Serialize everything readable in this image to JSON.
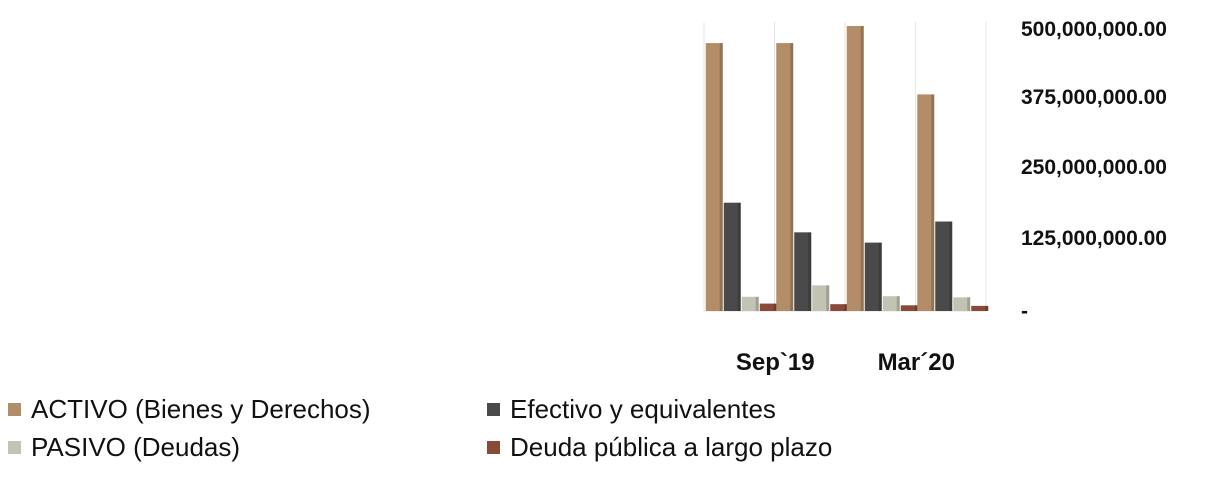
{
  "chart_data": {
    "type": "bar",
    "categories": [
      "Sep`19",
      "",
      "Mar´20",
      ""
    ],
    "series": [
      {
        "name": "ACTIVO (Bienes y Derechos)",
        "color": "#b28d67",
        "values": [
          470000000,
          470000000,
          500000000,
          380000000
        ]
      },
      {
        "name": "Efectivo y equivalentes",
        "color": "#4a4a4a",
        "values": [
          190000000,
          138000000,
          120000000,
          157000000
        ]
      },
      {
        "name": "PASIVO (Deudas)",
        "color": "#c3c3b3",
        "values": [
          25000000,
          45000000,
          26000000,
          24000000
        ]
      },
      {
        "name": "Deuda pública a largo plazo",
        "color": "#8a4a3a",
        "values": [
          13000000,
          12000000,
          10000000,
          9000000
        ]
      }
    ],
    "yticks": [
      "500,000,000.00",
      "375,000,000.00",
      "250,000,000.00",
      "125,000,000.00",
      "-"
    ],
    "ylim": [
      0,
      500000000
    ],
    "xlabel": "",
    "ylabel": "",
    "title": "",
    "grid": "vertical category dividers",
    "legend_position": "bottom-left",
    "y_axis_side": "right"
  }
}
